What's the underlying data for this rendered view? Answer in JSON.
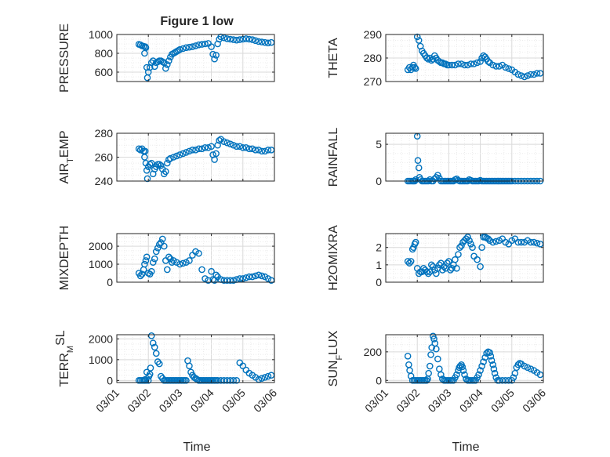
{
  "figure": {
    "title": "Figure 1 low",
    "x_label": "Time",
    "x_ticks": [
      "03/01",
      "03/02",
      "03/03",
      "03/04",
      "03/05",
      "03/06"
    ],
    "marker_color": "#0072BD",
    "marker": "open-circle"
  },
  "chart_data": [
    {
      "type": "scatter",
      "id": "pressure",
      "ylabel": "PRESSURE",
      "ylim": [
        500,
        1000
      ],
      "yticks": [
        600,
        800,
        1000
      ],
      "xlim": [
        0,
        5
      ],
      "grid": true,
      "x": [
        0.7,
        0.75,
        0.8,
        0.85,
        0.88,
        0.9,
        0.92,
        0.95,
        0.97,
        1.0,
        1.05,
        1.1,
        1.15,
        1.2,
        1.25,
        1.3,
        1.35,
        1.4,
        1.45,
        1.5,
        1.55,
        1.6,
        1.65,
        1.7,
        1.75,
        1.8,
        1.85,
        1.9,
        1.95,
        2.0,
        2.1,
        2.2,
        2.3,
        2.4,
        2.5,
        2.6,
        2.7,
        2.8,
        2.9,
        3.0,
        3.05,
        3.1,
        3.15,
        3.2,
        3.25,
        3.3,
        3.4,
        3.5,
        3.6,
        3.7,
        3.8,
        3.9,
        4.0,
        4.1,
        4.2,
        4.3,
        4.4,
        4.5,
        4.6,
        4.7,
        4.8,
        4.9
      ],
      "y": [
        895,
        890,
        880,
        875,
        800,
        870,
        860,
        650,
        540,
        600,
        650,
        700,
        720,
        660,
        700,
        710,
        720,
        720,
        710,
        700,
        640,
        680,
        720,
        760,
        790,
        800,
        810,
        820,
        830,
        840,
        850,
        860,
        865,
        870,
        880,
        890,
        895,
        900,
        905,
        870,
        790,
        740,
        780,
        900,
        950,
        975,
        965,
        955,
        950,
        945,
        940,
        945,
        950,
        955,
        950,
        945,
        935,
        925,
        920,
        915,
        910,
        915
      ]
    },
    {
      "type": "scatter",
      "id": "theta",
      "ylabel": "THETA",
      "ylim": [
        270,
        290
      ],
      "yticks": [
        270,
        280,
        290
      ],
      "xlim": [
        0,
        5
      ],
      "grid": true,
      "x": [
        0.7,
        0.75,
        0.8,
        0.85,
        0.88,
        0.92,
        0.95,
        1.0,
        1.05,
        1.1,
        1.15,
        1.2,
        1.25,
        1.3,
        1.35,
        1.4,
        1.45,
        1.5,
        1.55,
        1.6,
        1.65,
        1.7,
        1.75,
        1.8,
        1.85,
        1.9,
        1.95,
        2.0,
        2.1,
        2.2,
        2.3,
        2.4,
        2.5,
        2.6,
        2.7,
        2.8,
        2.9,
        3.0,
        3.05,
        3.1,
        3.15,
        3.2,
        3.25,
        3.3,
        3.4,
        3.5,
        3.6,
        3.7,
        3.8,
        3.9,
        4.0,
        4.1,
        4.2,
        4.3,
        4.4,
        4.5,
        4.6,
        4.7,
        4.8,
        4.9
      ],
      "y": [
        275,
        276,
        275,
        276,
        277,
        276,
        275.5,
        289,
        287.5,
        285,
        283,
        282,
        281,
        280,
        279.5,
        280,
        279,
        279.5,
        281,
        280,
        279,
        278.5,
        278,
        278,
        277.5,
        277.5,
        277,
        277,
        277,
        277,
        277.5,
        277.5,
        277,
        277,
        277.5,
        277.5,
        278,
        278.5,
        280,
        281,
        280.5,
        279.5,
        278.5,
        278,
        277,
        276.5,
        276.5,
        277,
        276,
        275.5,
        275,
        274,
        273,
        272.5,
        272,
        272.5,
        273,
        273,
        273.5,
        273.5
      ]
    },
    {
      "type": "scatter",
      "id": "air_temp",
      "ylabel": "AIR",
      "ylabel_sub": "T",
      "ylabel_rest": "EMP",
      "ylim": [
        240,
        280
      ],
      "yticks": [
        240,
        260,
        280
      ],
      "xlim": [
        0,
        5
      ],
      "grid": true,
      "x": [
        0.7,
        0.75,
        0.8,
        0.85,
        0.88,
        0.9,
        0.92,
        0.95,
        0.97,
        1.0,
        1.05,
        1.1,
        1.15,
        1.2,
        1.25,
        1.3,
        1.35,
        1.4,
        1.45,
        1.5,
        1.55,
        1.6,
        1.65,
        1.7,
        1.8,
        1.9,
        2.0,
        2.1,
        2.2,
        2.3,
        2.4,
        2.5,
        2.6,
        2.7,
        2.8,
        2.9,
        3.0,
        3.05,
        3.1,
        3.15,
        3.2,
        3.25,
        3.3,
        3.4,
        3.5,
        3.6,
        3.7,
        3.8,
        3.9,
        4.0,
        4.1,
        4.2,
        4.3,
        4.4,
        4.5,
        4.6,
        4.7,
        4.8,
        4.9
      ],
      "y": [
        267,
        266,
        267,
        265,
        260,
        265,
        255,
        249,
        242,
        252,
        254,
        255,
        246,
        250,
        252,
        254,
        254,
        253,
        250,
        246,
        248,
        255,
        258,
        259,
        260,
        261,
        262,
        263,
        264,
        265,
        266,
        266,
        267,
        267,
        268,
        268,
        269,
        262,
        258,
        263,
        270,
        274,
        275,
        273,
        272,
        271,
        270,
        269,
        269,
        268,
        268,
        267,
        267,
        266,
        266,
        265,
        265,
        266,
        266
      ]
    },
    {
      "type": "scatter",
      "id": "rainfall",
      "ylabel": "RAINFALL",
      "ylim": [
        0,
        6.5
      ],
      "yticks": [
        0,
        5
      ],
      "xlim": [
        0,
        5
      ],
      "grid": true,
      "x": [
        0.7,
        0.75,
        0.8,
        0.85,
        0.88,
        0.92,
        0.95,
        1.0,
        1.02,
        1.05,
        1.07,
        1.1,
        1.15,
        1.2,
        1.25,
        1.3,
        1.35,
        1.4,
        1.45,
        1.5,
        1.55,
        1.6,
        1.65,
        1.7,
        1.75,
        1.8,
        1.85,
        1.9,
        1.95,
        2.0,
        2.05,
        2.1,
        2.15,
        2.2,
        2.25,
        2.3,
        2.35,
        2.4,
        2.45,
        2.5,
        2.55,
        2.6,
        2.65,
        2.7,
        2.75,
        2.8,
        2.85,
        2.9,
        2.95,
        3.0,
        3.05,
        3.1,
        3.15,
        3.2,
        3.25,
        3.3,
        3.35,
        3.4,
        3.45,
        3.5,
        3.55,
        3.6,
        3.65,
        3.7,
        3.75,
        3.8,
        3.85,
        3.9,
        3.95,
        4.0,
        4.1,
        4.2,
        4.3,
        4.4,
        4.5,
        4.6,
        4.7,
        4.8,
        4.9
      ],
      "y": [
        0,
        0,
        0,
        0,
        0,
        0,
        0.2,
        6.1,
        2.8,
        1.8,
        0.5,
        0.2,
        0,
        0,
        0,
        0,
        0,
        0.2,
        0,
        0,
        0.3,
        0.5,
        0.8,
        0.4,
        0,
        0,
        0,
        0,
        0,
        0,
        0,
        0,
        0,
        0.2,
        0.3,
        0.1,
        0,
        0,
        0,
        0,
        0,
        0,
        0.2,
        0.1,
        0,
        0,
        0,
        0,
        0,
        0.1,
        0,
        0,
        0,
        0,
        0,
        0,
        0,
        0,
        0,
        0,
        0,
        0,
        0,
        0,
        0,
        0,
        0,
        0,
        0,
        0,
        0,
        0,
        0,
        0,
        0,
        0,
        0,
        0,
        0
      ]
    },
    {
      "type": "scatter",
      "id": "mixdepth",
      "ylabel": "MIXDEPTH",
      "ylim": [
        0,
        2700
      ],
      "yticks": [
        0,
        1000,
        2000
      ],
      "xlim": [
        0,
        5
      ],
      "grid": true,
      "x": [
        0.7,
        0.75,
        0.8,
        0.85,
        0.88,
        0.92,
        0.95,
        1.0,
        1.05,
        1.1,
        1.15,
        1.2,
        1.25,
        1.3,
        1.35,
        1.4,
        1.45,
        1.5,
        1.55,
        1.6,
        1.65,
        1.7,
        1.75,
        1.8,
        1.9,
        2.0,
        2.1,
        2.2,
        2.3,
        2.4,
        2.5,
        2.6,
        2.7,
        2.8,
        2.9,
        3.0,
        3.05,
        3.1,
        3.15,
        3.2,
        3.3,
        3.4,
        3.5,
        3.6,
        3.7,
        3.8,
        3.9,
        4.0,
        4.1,
        4.2,
        4.3,
        4.4,
        4.5,
        4.6,
        4.7,
        4.8,
        4.9
      ],
      "y": [
        500,
        350,
        450,
        700,
        1000,
        1200,
        1400,
        500,
        450,
        600,
        1100,
        1300,
        1700,
        1900,
        2100,
        2200,
        2400,
        2000,
        1200,
        700,
        1400,
        1300,
        1100,
        1200,
        1100,
        1000,
        1050,
        1100,
        1200,
        1500,
        1700,
        1600,
        700,
        200,
        100,
        600,
        150,
        100,
        400,
        300,
        150,
        100,
        100,
        100,
        100,
        150,
        200,
        200,
        250,
        300,
        300,
        350,
        400,
        350,
        300,
        200,
        100
      ]
    },
    {
      "type": "scatter",
      "id": "h2omixra",
      "ylabel": "H2OMIXRA",
      "ylim": [
        0,
        2.8
      ],
      "yticks": [
        0,
        1,
        2
      ],
      "xlim": [
        0,
        5
      ],
      "grid": true,
      "x": [
        0.7,
        0.75,
        0.8,
        0.85,
        0.88,
        0.92,
        0.95,
        1.0,
        1.05,
        1.1,
        1.15,
        1.2,
        1.25,
        1.3,
        1.35,
        1.4,
        1.45,
        1.5,
        1.55,
        1.6,
        1.65,
        1.7,
        1.75,
        1.8,
        1.85,
        1.9,
        1.95,
        2.0,
        2.05,
        2.1,
        2.15,
        2.2,
        2.25,
        2.3,
        2.35,
        2.4,
        2.45,
        2.5,
        2.55,
        2.6,
        2.65,
        2.7,
        2.75,
        2.8,
        2.9,
        3.0,
        3.05,
        3.1,
        3.15,
        3.2,
        3.25,
        3.3,
        3.4,
        3.5,
        3.6,
        3.7,
        3.8,
        3.9,
        4.0,
        4.1,
        4.2,
        4.3,
        4.4,
        4.5,
        4.6,
        4.7,
        4.8,
        4.9
      ],
      "y": [
        1.2,
        1.1,
        1.2,
        1.9,
        2.0,
        2.2,
        2.3,
        0.8,
        0.5,
        0.6,
        0.6,
        0.8,
        0.7,
        0.6,
        0.5,
        0.6,
        1.0,
        0.9,
        0.7,
        0.5,
        0.8,
        1.0,
        1.1,
        0.7,
        0.9,
        0.8,
        1.1,
        1.2,
        0.7,
        0.8,
        1.0,
        1.3,
        0.8,
        1.6,
        2.0,
        2.1,
        2.3,
        2.4,
        2.5,
        2.6,
        2.4,
        2.2,
        2.0,
        1.5,
        1.3,
        0.9,
        2.0,
        2.6,
        2.6,
        2.55,
        2.5,
        2.4,
        2.3,
        2.35,
        2.4,
        2.5,
        2.3,
        2.2,
        2.4,
        2.5,
        2.3,
        2.3,
        2.3,
        2.4,
        2.3,
        2.3,
        2.25,
        2.2
      ]
    },
    {
      "type": "scatter",
      "id": "terr_msl",
      "ylabel": "TERR",
      "ylabel_sub": "M",
      "ylabel_sup": "SL",
      "ylim": [
        -100,
        2200
      ],
      "yticks": [
        0,
        1000,
        2000
      ],
      "xlim": [
        0,
        5
      ],
      "grid": true,
      "x": [
        0.7,
        0.75,
        0.8,
        0.85,
        0.88,
        0.9,
        0.92,
        0.95,
        1.0,
        1.02,
        1.05,
        1.07,
        1.1,
        1.15,
        1.2,
        1.25,
        1.3,
        1.35,
        1.4,
        1.45,
        1.5,
        1.55,
        1.6,
        1.65,
        1.7,
        1.75,
        1.8,
        1.85,
        1.9,
        1.95,
        2.0,
        2.05,
        2.1,
        2.15,
        2.2,
        2.25,
        2.3,
        2.35,
        2.4,
        2.45,
        2.5,
        2.55,
        2.6,
        2.65,
        2.7,
        2.75,
        2.8,
        2.85,
        2.9,
        2.95,
        3.0,
        3.05,
        3.1,
        3.15,
        3.2,
        3.3,
        3.4,
        3.5,
        3.6,
        3.7,
        3.8,
        3.9,
        4.0,
        4.1,
        4.2,
        4.3,
        4.4,
        4.5,
        4.6,
        4.7,
        4.8,
        4.9
      ],
      "y": [
        0,
        0,
        0,
        0,
        0,
        50,
        0,
        400,
        0,
        200,
        300,
        600,
        2150,
        1800,
        1600,
        1300,
        900,
        800,
        200,
        100,
        0,
        0,
        0,
        0,
        0,
        0,
        0,
        0,
        0,
        0,
        0,
        0,
        0,
        0,
        0,
        950,
        700,
        400,
        250,
        150,
        100,
        50,
        0,
        0,
        0,
        0,
        0,
        0,
        0,
        0,
        0,
        0,
        0,
        0,
        0,
        0,
        0,
        0,
        0,
        0,
        0,
        850,
        700,
        500,
        350,
        250,
        150,
        50,
        100,
        150,
        200,
        250
      ]
    },
    {
      "type": "scatter",
      "id": "sun_flux",
      "ylabel": "SUN",
      "ylabel_sub": "F",
      "ylabel_rest": "LUX",
      "ylim": [
        -15,
        320
      ],
      "yticks": [
        0,
        200
      ],
      "xlim": [
        0,
        5
      ],
      "grid": true,
      "x": [
        0.7,
        0.73,
        0.76,
        0.8,
        0.85,
        0.9,
        0.95,
        1.0,
        1.05,
        1.1,
        1.15,
        1.2,
        1.25,
        1.3,
        1.33,
        1.36,
        1.4,
        1.43,
        1.46,
        1.5,
        1.53,
        1.56,
        1.6,
        1.65,
        1.7,
        1.75,
        1.8,
        1.85,
        1.9,
        1.95,
        2.0,
        2.05,
        2.1,
        2.15,
        2.2,
        2.25,
        2.3,
        2.33,
        2.36,
        2.4,
        2.43,
        2.46,
        2.5,
        2.55,
        2.6,
        2.65,
        2.7,
        2.75,
        2.8,
        2.85,
        2.9,
        2.95,
        3.0,
        3.05,
        3.1,
        3.15,
        3.2,
        3.25,
        3.3,
        3.33,
        3.36,
        3.4,
        3.43,
        3.46,
        3.5,
        3.55,
        3.6,
        3.7,
        3.8,
        3.9,
        4.0,
        4.05,
        4.1,
        4.15,
        4.2,
        4.25,
        4.3,
        4.4,
        4.5,
        4.6,
        4.7,
        4.8,
        4.9
      ],
      "y": [
        170,
        110,
        70,
        30,
        0,
        0,
        0,
        0,
        0,
        0,
        0,
        0,
        0,
        0,
        10,
        50,
        100,
        180,
        230,
        310,
        290,
        260,
        220,
        150,
        80,
        40,
        10,
        0,
        0,
        0,
        0,
        0,
        0,
        0,
        20,
        40,
        70,
        90,
        100,
        110,
        95,
        70,
        40,
        10,
        0,
        0,
        0,
        0,
        0,
        0,
        20,
        40,
        70,
        100,
        130,
        160,
        190,
        200,
        195,
        170,
        140,
        110,
        80,
        50,
        20,
        0,
        0,
        0,
        0,
        0,
        0,
        20,
        50,
        90,
        110,
        120,
        115,
        100,
        90,
        80,
        70,
        55,
        40
      ]
    }
  ]
}
